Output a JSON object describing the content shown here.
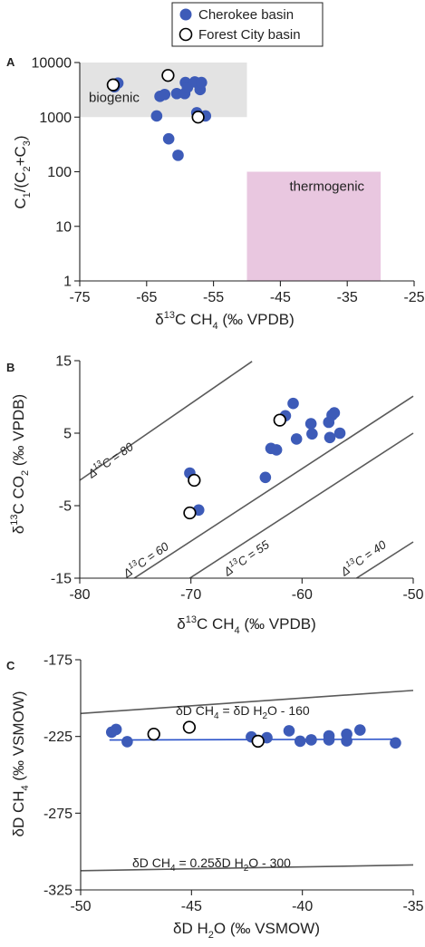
{
  "legend": {
    "items": [
      {
        "label": "Cherokee basin",
        "marker": "filled",
        "color": "#3d5bb8"
      },
      {
        "label": "Forest City basin",
        "marker": "open",
        "color": "#000000"
      }
    ]
  },
  "colors": {
    "cherokee": "#3d5bb8",
    "forest_city": "#000000",
    "biogenic_box": "#e3e3e3",
    "thermogenic_box": "#e9c7e0",
    "fit_line": "#2a52c9",
    "reference_lines": "#5a5a5a"
  },
  "chart_data": [
    {
      "panel": "A",
      "type": "scatter",
      "xlabel": "δ13C CH4 (‰ VPDB)",
      "ylabel": "C1/(C2+C3)",
      "xlim": [
        -75,
        -25
      ],
      "xticks": [
        -75,
        -65,
        -55,
        -45,
        -35,
        -25
      ],
      "ylim": [
        1,
        10000
      ],
      "yscale": "log",
      "yticks": [
        1,
        10,
        100,
        1000,
        10000
      ],
      "regions": [
        {
          "label": "biogenic",
          "x": [
            -75,
            -50
          ],
          "y": [
            1000,
            10000
          ]
        },
        {
          "label": "thermogenic",
          "x": [
            -50,
            -30
          ],
          "y": [
            1,
            100
          ]
        }
      ],
      "series": [
        {
          "name": "Cherokee basin",
          "points": [
            [
              -69.8,
              3600
            ],
            [
              -69.3,
              4200
            ],
            [
              -63.5,
              1050
            ],
            [
              -63,
              2400
            ],
            [
              -62.3,
              2600
            ],
            [
              -61.7,
              400
            ],
            [
              -60.5,
              2700
            ],
            [
              -60.3,
              200
            ],
            [
              -59.3,
              2700
            ],
            [
              -59.2,
              4300
            ],
            [
              -58.9,
              3500
            ],
            [
              -57.8,
              4400
            ],
            [
              -57.5,
              1200
            ],
            [
              -57,
              3200
            ],
            [
              -56.8,
              4300
            ],
            [
              -56.2,
              1050
            ]
          ]
        },
        {
          "name": "Forest City basin",
          "points": [
            [
              -70,
              3900
            ],
            [
              -61.8,
              5800
            ],
            [
              -57.3,
              1000
            ]
          ]
        }
      ]
    },
    {
      "panel": "B",
      "type": "scatter",
      "xlabel": "δ13C CH4 (‰ VPDB)",
      "ylabel": "δ13C CO2 (‰ VPDB)",
      "xlim": [
        -80,
        -50
      ],
      "xticks": [
        -80,
        -70,
        -60,
        -50
      ],
      "ylim": [
        -15,
        15
      ],
      "yticks": [
        -15,
        -5,
        5,
        15
      ],
      "reference_lines": [
        {
          "label": "Δ13C = 80",
          "points": [
            [
              -80,
              -1.5
            ],
            [
              -64.5,
              14.9
            ]
          ]
        },
        {
          "label": "Δ13C = 60",
          "points": [
            [
              -75.1,
              -15
            ],
            [
              -50,
              10.1
            ]
          ]
        },
        {
          "label": "Δ13C = 55",
          "points": [
            [
              -70.1,
              -15
            ],
            [
              -50,
              5
            ]
          ]
        },
        {
          "label": "Δ13C = 40",
          "points": [
            [
              -55.1,
              -15
            ],
            [
              -50,
              -10
            ]
          ]
        }
      ],
      "series": [
        {
          "name": "Cherokee basin",
          "points": [
            [
              -70.1,
              -0.5
            ],
            [
              -69.3,
              -5.6
            ],
            [
              -63.3,
              -1.1
            ],
            [
              -62.8,
              2.9
            ],
            [
              -62.3,
              2.7
            ],
            [
              -61.5,
              7.4
            ],
            [
              -60.8,
              9.1
            ],
            [
              -60.5,
              4.2
            ],
            [
              -59.2,
              6.3
            ],
            [
              -59.1,
              4.9
            ],
            [
              -57.6,
              6.5
            ],
            [
              -57.5,
              4.4
            ],
            [
              -57.3,
              7.5
            ],
            [
              -57.1,
              7.8
            ],
            [
              -56.6,
              5
            ]
          ]
        },
        {
          "name": "Forest City basin",
          "points": [
            [
              -70.1,
              -6
            ],
            [
              -69.7,
              -1.5
            ],
            [
              -62,
              6.8
            ]
          ]
        }
      ]
    },
    {
      "panel": "C",
      "type": "scatter",
      "xlabel": "δD H2O (‰ VSMOW)",
      "ylabel": "δD CH4 (‰ VSMOW)",
      "xlim": [
        -50,
        -35
      ],
      "xticks": [
        -50,
        -45,
        -40,
        -35
      ],
      "ylim": [
        -325,
        -175
      ],
      "yticks": [
        -325,
        -275,
        -225,
        -175
      ],
      "reference_lines": [
        {
          "label": "δD CH4 = δD H2O - 160",
          "points": [
            [
              -50,
              -210
            ],
            [
              -35,
              -195
            ]
          ]
        },
        {
          "label": "δD CH4 = 0.25δD H2O - 300",
          "points": [
            [
              -50,
              -312.5
            ],
            [
              -35,
              -308.75
            ]
          ]
        }
      ],
      "fit_line": {
        "points": [
          [
            -48.7,
            -227.3
          ],
          [
            -35.7,
            -226.8
          ]
        ]
      },
      "series": [
        {
          "name": "Cherokee basin",
          "points": [
            [
              -48.6,
              -222.2
            ],
            [
              -48.4,
              -220.4
            ],
            [
              -47.9,
              -228.4
            ],
            [
              -42.3,
              -225.3
            ],
            [
              -41.6,
              -225.8
            ],
            [
              -40.6,
              -221.3
            ],
            [
              -40.1,
              -228.1
            ],
            [
              -39.6,
              -227.2
            ],
            [
              -38.8,
              -224.6
            ],
            [
              -38.8,
              -227.2
            ],
            [
              -38,
              -223.5
            ],
            [
              -38,
              -227.9
            ],
            [
              -37.4,
              -220.8
            ],
            [
              -35.8,
              -229.2
            ]
          ]
        },
        {
          "name": "Forest City basin",
          "points": [
            [
              -46.7,
              -223.5
            ],
            [
              -45.1,
              -219
            ],
            [
              -42,
              -228.1
            ]
          ]
        }
      ]
    }
  ]
}
